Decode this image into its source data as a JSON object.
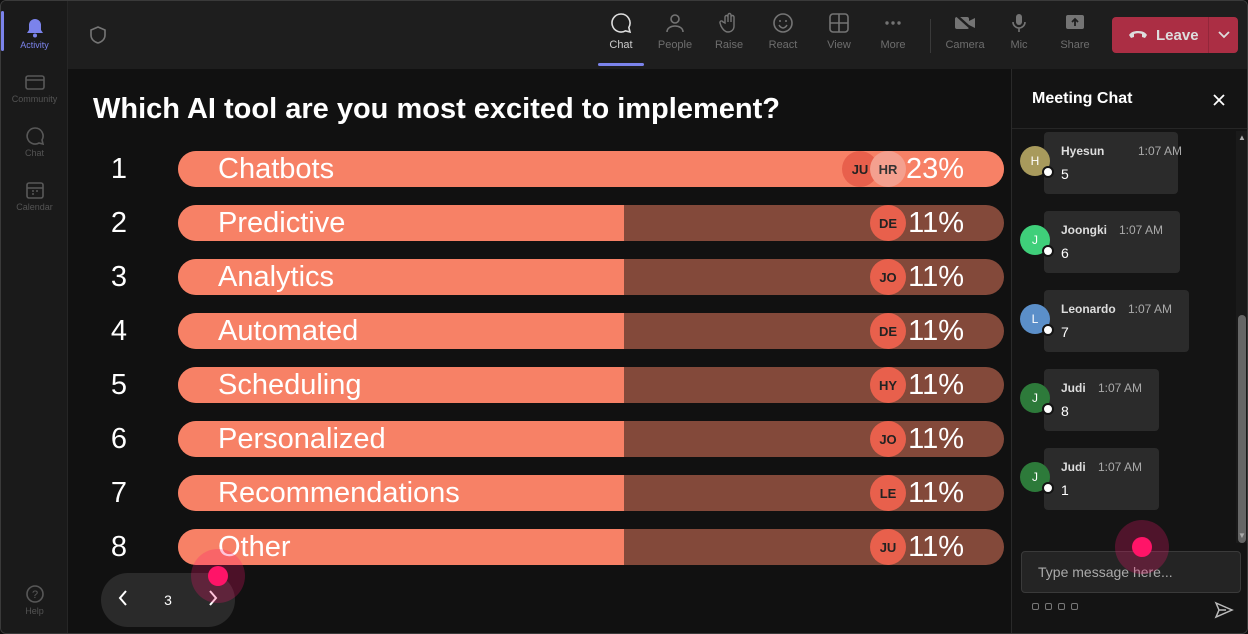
{
  "rail": {
    "items": [
      {
        "label": "Activity",
        "icon": "bell-icon"
      },
      {
        "label": "Community",
        "icon": "community-icon"
      },
      {
        "label": "Chat",
        "icon": "chat-icon"
      },
      {
        "label": "Calendar",
        "icon": "calendar-icon"
      },
      {
        "label": "Help",
        "icon": "help-icon"
      }
    ]
  },
  "toolbar": {
    "chat": "Chat",
    "people": "People",
    "raise": "Raise",
    "react": "React",
    "view": "View",
    "more": "More",
    "camera": "Camera",
    "mic": "Mic",
    "share": "Share",
    "leave": "Leave"
  },
  "poll": {
    "question": "Which AI tool are you most excited to implement?",
    "options": [
      {
        "num": "1",
        "label": "Chatbots",
        "pct": "23%",
        "fraction": 1.0,
        "avatars": [
          "JU",
          "HR"
        ]
      },
      {
        "num": "2",
        "label": "Predictive",
        "pct": "11%",
        "fraction": 0.54,
        "avatars": [
          "DE"
        ]
      },
      {
        "num": "3",
        "label": "Analytics",
        "pct": "11%",
        "fraction": 0.54,
        "avatars": [
          "JO"
        ]
      },
      {
        "num": "4",
        "label": "Automated",
        "pct": "11%",
        "fraction": 0.54,
        "avatars": [
          "DE"
        ]
      },
      {
        "num": "5",
        "label": "Scheduling",
        "pct": "11%",
        "fraction": 0.54,
        "avatars": [
          "HY"
        ]
      },
      {
        "num": "6",
        "label": "Personalized",
        "pct": "11%",
        "fraction": 0.54,
        "avatars": [
          "JO"
        ]
      },
      {
        "num": "7",
        "label": "Recommendations",
        "pct": "11%",
        "fraction": 0.54,
        "avatars": [
          "LE"
        ]
      },
      {
        "num": "8",
        "label": "Other",
        "pct": "11%",
        "fraction": 0.54,
        "avatars": [
          "JU"
        ]
      }
    ],
    "page": "3"
  },
  "chat": {
    "title": "Meeting Chat",
    "messages": [
      {
        "initial": "H",
        "name": "Hyesun",
        "time": "1:07 AM",
        "text": "5",
        "color": "#a89a5c"
      },
      {
        "initial": "J",
        "name": "Joongki",
        "time": "1:07 AM",
        "text": "6",
        "color": "#3fcf7a"
      },
      {
        "initial": "L",
        "name": "Leonardo",
        "time": "1:07 AM",
        "text": "7",
        "color": "#5b8fc9"
      },
      {
        "initial": "J",
        "name": "Judi",
        "time": "1:07 AM",
        "text": "8",
        "color": "#2d7a3a"
      },
      {
        "initial": "J",
        "name": "Judi",
        "time": "1:07 AM",
        "text": "1",
        "color": "#2d7a3a"
      }
    ],
    "placeholder": "Type message here..."
  },
  "colors": {
    "bar_fill": "#f78166",
    "bar_track": "#83493a",
    "accent": "#7b83eb",
    "leave": "#c4314b"
  }
}
